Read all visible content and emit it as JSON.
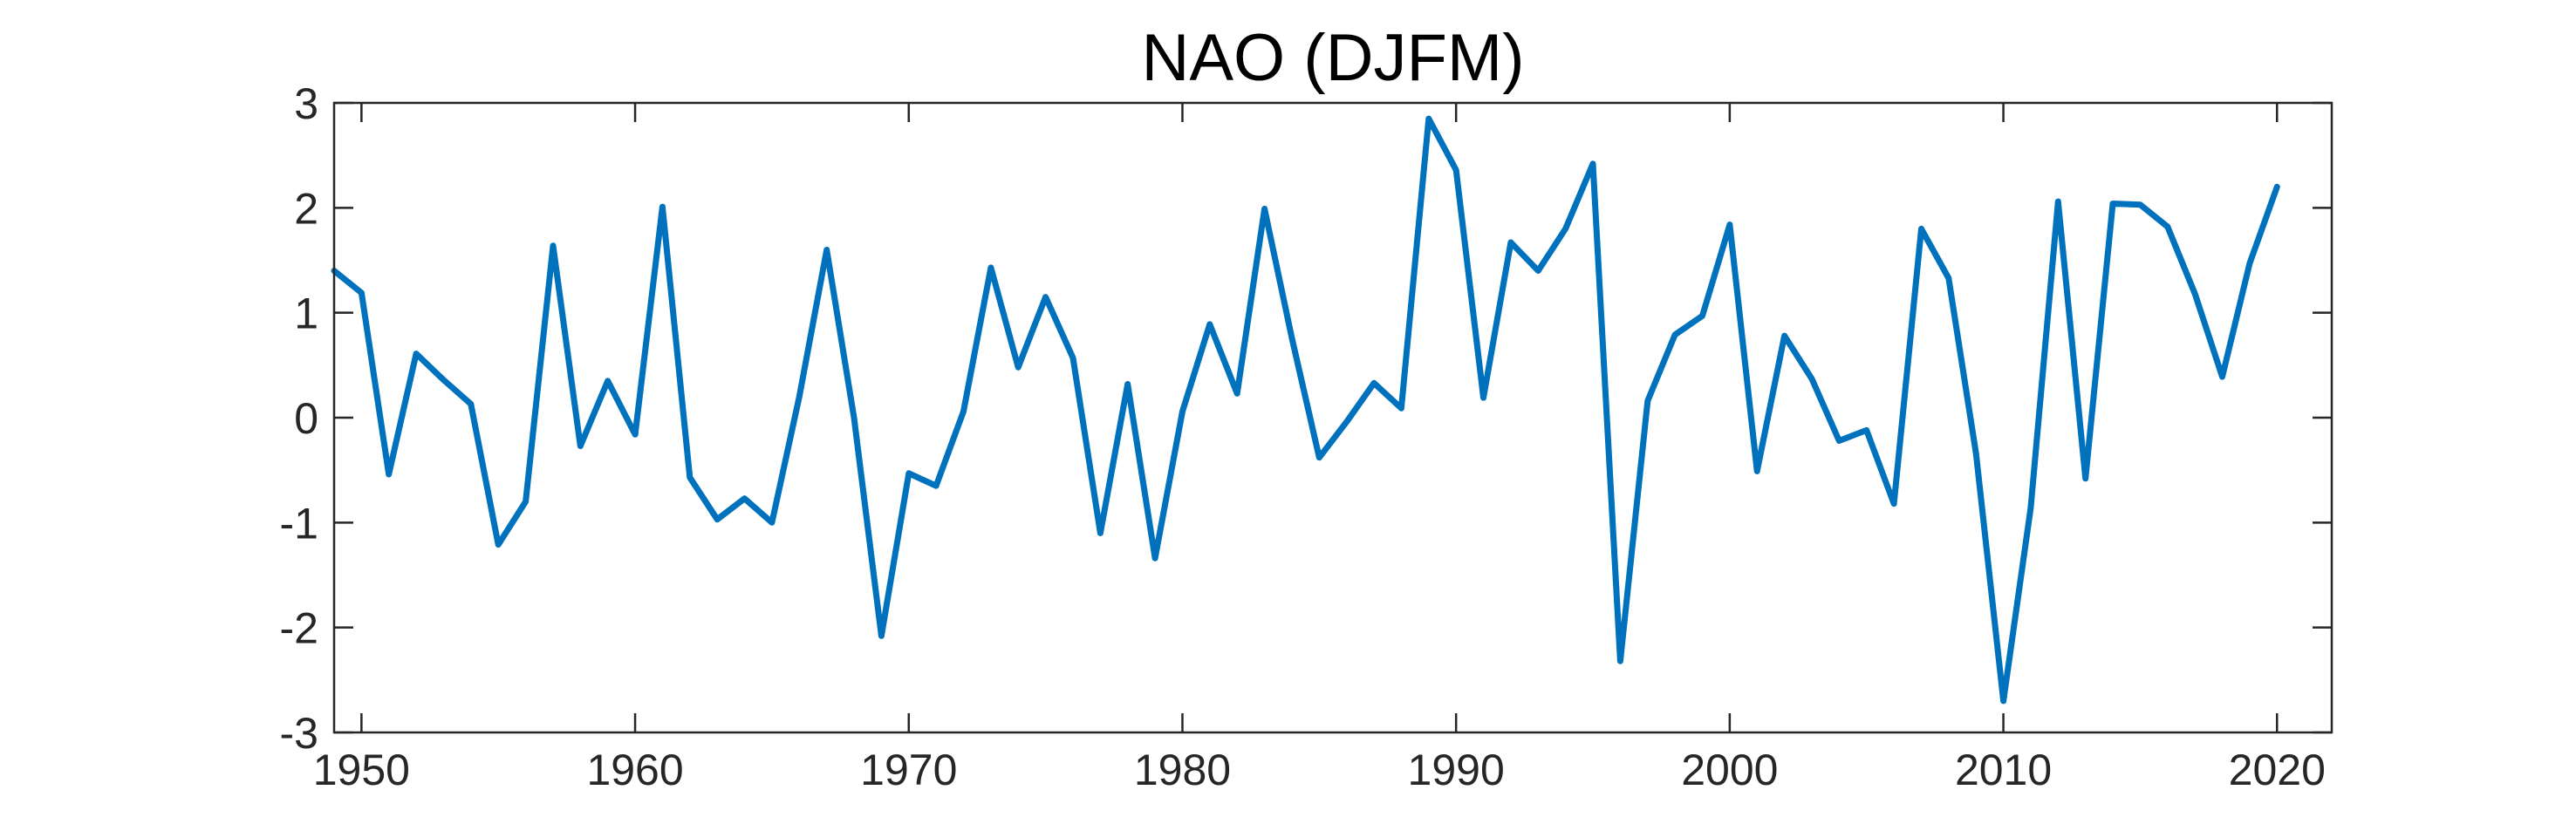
{
  "chart_data": {
    "type": "line",
    "title": "NAO (DJFM)",
    "xlabel": "",
    "ylabel": "",
    "xlim": [
      1949,
      2022
    ],
    "ylim": [
      -3,
      3
    ],
    "xticks": [
      1950,
      1960,
      1970,
      1980,
      1990,
      2000,
      2010,
      2020
    ],
    "xtick_labels": [
      "1950",
      "1960",
      "1970",
      "1980",
      "1990",
      "2000",
      "2010",
      "2020"
    ],
    "yticks": [
      -3,
      -2,
      -1,
      0,
      1,
      2,
      3
    ],
    "ytick_labels": [
      "-3",
      "-2",
      "-1",
      "0",
      "1",
      "2",
      "3"
    ],
    "grid": false,
    "legend": "none",
    "series": [
      {
        "color": "#0072BD",
        "x": [
          1949,
          1950,
          1951,
          1952,
          1953,
          1954,
          1955,
          1956,
          1957,
          1958,
          1959,
          1960,
          1961,
          1962,
          1963,
          1964,
          1965,
          1966,
          1967,
          1968,
          1969,
          1970,
          1971,
          1972,
          1973,
          1974,
          1975,
          1976,
          1977,
          1978,
          1979,
          1980,
          1981,
          1982,
          1983,
          1984,
          1985,
          1986,
          1987,
          1988,
          1989,
          1990,
          1991,
          1992,
          1993,
          1994,
          1995,
          1996,
          1997,
          1998,
          1999,
          2000,
          2001,
          2002,
          2003,
          2004,
          2005,
          2006,
          2007,
          2008,
          2009,
          2010,
          2011,
          2012,
          2013,
          2014,
          2015,
          2016,
          2017,
          2018,
          2019,
          2020
        ],
        "values": [
          1.4,
          1.19,
          -0.54,
          0.61,
          0.36,
          0.13,
          -1.21,
          -0.8,
          1.64,
          -0.27,
          0.35,
          -0.16,
          2.01,
          -0.57,
          -0.97,
          -0.77,
          -1.0,
          0.2,
          1.6,
          0.0,
          -2.08,
          -0.53,
          -0.65,
          0.06,
          1.43,
          0.48,
          1.15,
          0.57,
          -1.1,
          0.32,
          -1.34,
          0.06,
          0.89,
          0.23,
          1.99,
          0.76,
          -0.38,
          -0.04,
          0.33,
          0.09,
          2.85,
          2.36,
          0.19,
          1.67,
          1.4,
          1.8,
          2.42,
          -2.32,
          0.16,
          0.79,
          0.97,
          1.84,
          -0.51,
          0.78,
          0.37,
          -0.22,
          -0.12,
          -0.82,
          1.8,
          1.33,
          -0.34,
          -2.7,
          -0.86,
          2.06,
          -0.58,
          2.04,
          2.03,
          1.82,
          1.18,
          0.39,
          1.47,
          2.2
        ]
      }
    ]
  }
}
